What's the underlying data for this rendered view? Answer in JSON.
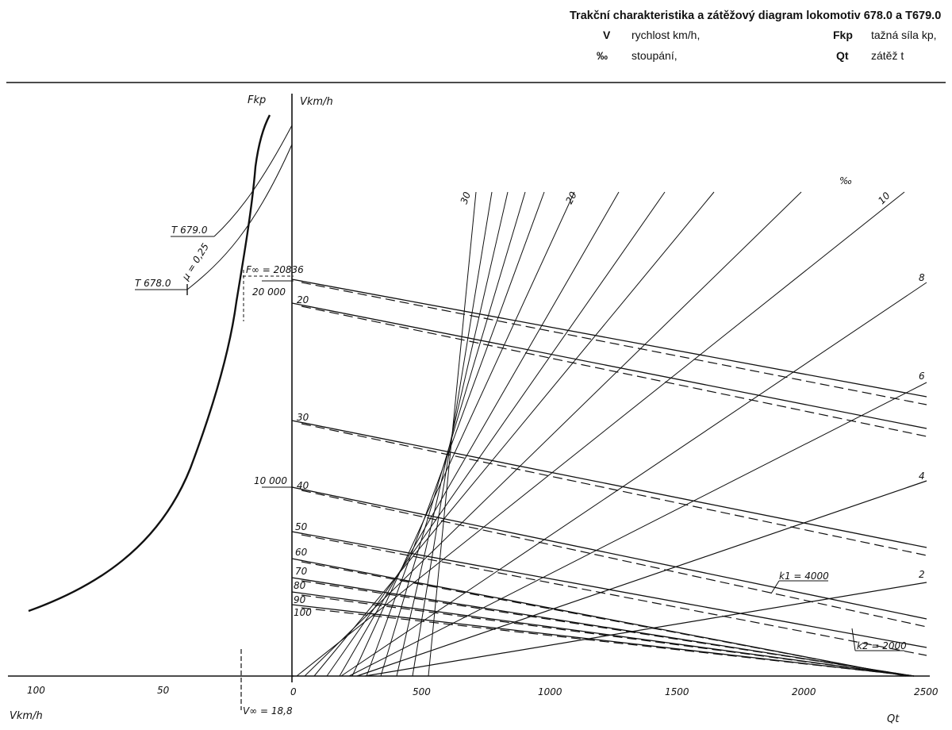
{
  "header": {
    "title": "Trakční charakteristika a zátěžový diagram lokomotiv 678.0 a T679.0",
    "legend": [
      {
        "symbol": "V",
        "text": "rychlost km/h,"
      },
      {
        "symbol": "‰",
        "text": "stoupání,"
      },
      {
        "symbol": "Fkp",
        "text": "tažná síla kp,"
      },
      {
        "symbol": "Qt",
        "text": "zátěž t"
      }
    ]
  },
  "left_panel": {
    "y_axis_label": "Fkp",
    "x_axis_label": "Vkm/h",
    "x_ticks": [
      "100",
      "50",
      "0"
    ],
    "force_ticks": [
      "20 000",
      "10 000"
    ],
    "f_infinity_label": "F∞ = 20836",
    "v_infinity_label": "V∞ = 18,8",
    "mu_label": "μ = 0,25",
    "locomotive_labels": [
      "T 679.0",
      "T 678.0"
    ]
  },
  "right_panel": {
    "v_axis_label": "Vkm/h",
    "q_axis_label": "Qt",
    "v_ticks": [
      "20",
      "30",
      "40",
      "50",
      "60",
      "70",
      "80",
      "90",
      "100"
    ],
    "q_ticks": [
      "0",
      "500",
      "1000",
      "1500",
      "2000",
      "2500"
    ],
    "grade_unit": "‰",
    "grade_labels": [
      "30",
      "20",
      "10",
      "8",
      "6",
      "4",
      "2"
    ],
    "k1_label": "k1 = 4000",
    "k2_label": "k2 = 2000"
  },
  "chart_data": {
    "type": "line",
    "title": "Trakční charakteristika a zátěžový diagram lokomotiv 678.0 a T679.0",
    "left": {
      "description": "Tractive force vs speed",
      "xlabel": "V km/h",
      "ylabel": "Fkp",
      "xlim": [
        110,
        0
      ],
      "ylim": [
        0,
        33000
      ],
      "traction_curve": {
        "x": [
          105,
          80,
          60,
          45,
          35,
          28,
          24,
          21,
          19,
          17,
          15,
          13,
          11,
          9
        ],
        "y": [
          3800,
          5200,
          7000,
          9500,
          12000,
          15000,
          17800,
          20000,
          22000,
          25000,
          28000,
          30500,
          32000,
          33000
        ]
      },
      "f_infinity": 20836,
      "v_infinity": 18.8,
      "mu": 0.25
    },
    "right": {
      "description": "Load diagram: speed vs trailing load for gradients",
      "xlabel": "Qt",
      "ylabel": "V km/h",
      "xlim": [
        0,
        2500
      ],
      "speed_lines": [
        {
          "v": 20,
          "points": [
            [
              0,
              20
            ],
            [
              2500,
              20
            ]
          ]
        },
        {
          "v": 30
        },
        {
          "v": 40
        },
        {
          "v": 50
        },
        {
          "v": 60
        },
        {
          "v": 70
        },
        {
          "v": 80
        },
        {
          "v": 90
        },
        {
          "v": 100
        }
      ],
      "gradients_permille": [
        30,
        28,
        26,
        24,
        22,
        20,
        18,
        16,
        14,
        12,
        10,
        8,
        6,
        4,
        2
      ],
      "k1": 4000,
      "k2": 2000
    }
  }
}
